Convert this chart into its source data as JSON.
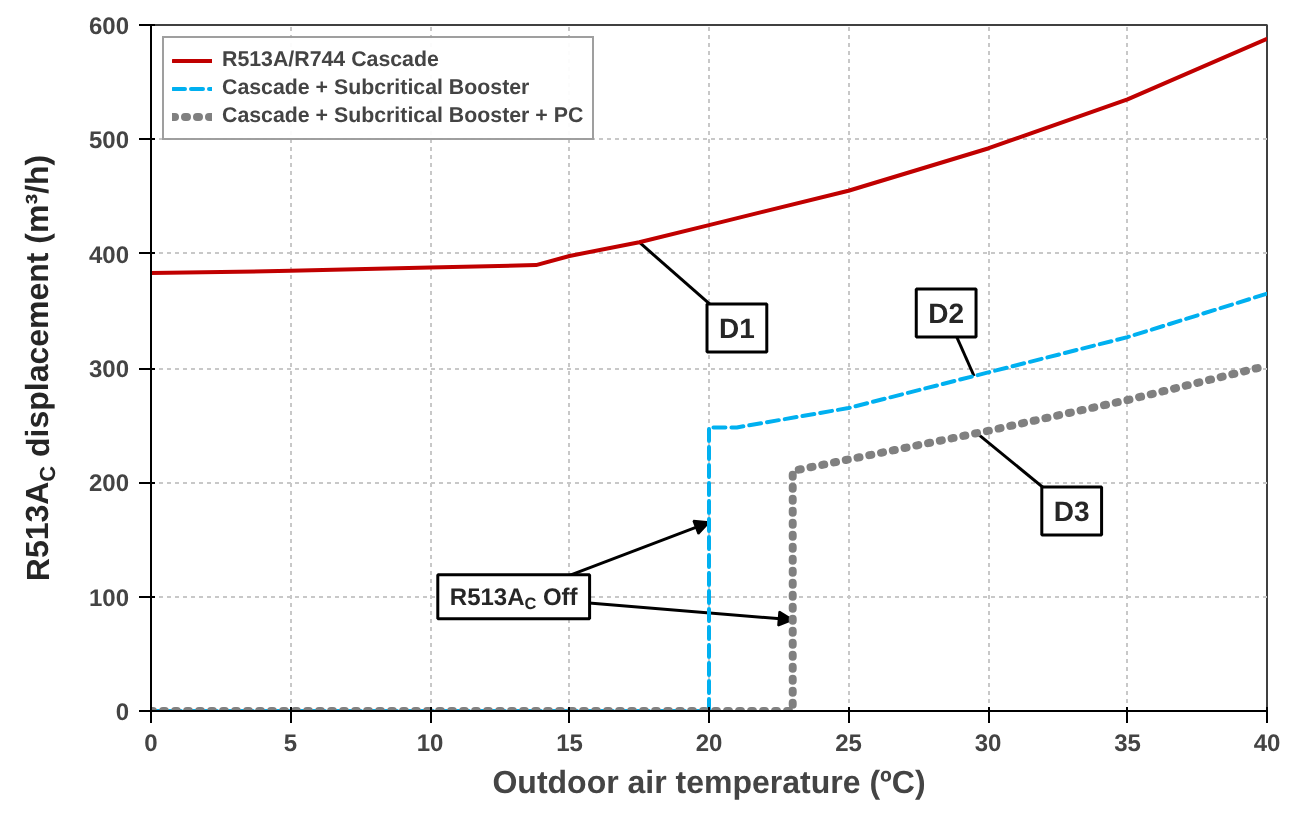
{
  "chart_data": {
    "type": "line",
    "xlabel": "Outdoor air temperature (ºC)",
    "ylabel": "R513A$_{C}$ displacement (m³/h)",
    "xlim": [
      0,
      40
    ],
    "xticks": [
      0,
      5,
      10,
      15,
      20,
      25,
      30,
      35,
      40
    ],
    "ylim": [
      0,
      600
    ],
    "yticks": [
      0,
      100,
      200,
      300,
      400,
      500,
      600
    ],
    "grid": true,
    "legend": "top left",
    "series": [
      {
        "name": "R513A/R744 Cascade",
        "color": "#c00000",
        "line_style": "solid",
        "x": [
          0,
          5,
          10,
          13.8,
          15,
          17.5,
          20,
          25,
          30,
          35,
          40
        ],
        "values": [
          383,
          385,
          388,
          390,
          398,
          410,
          425,
          455,
          492,
          535,
          588
        ]
      },
      {
        "name": "Cascade + Subcritical Booster",
        "color": "#00b0f0",
        "line_style": "dashed",
        "x": [
          0,
          20,
          20,
          21,
          25,
          29.5,
          35,
          40
        ],
        "values": [
          0,
          0,
          248,
          248,
          265,
          293,
          327,
          365
        ]
      },
      {
        "name": "Cascade + Subcritical Booster + PC",
        "color": "#808080",
        "line_style": "dotted",
        "x": [
          0,
          23,
          23,
          24,
          25,
          30,
          35,
          40
        ],
        "values": [
          0,
          0,
          210,
          215,
          220,
          245,
          272,
          302
        ]
      }
    ],
    "annotations": [
      {
        "text": "D1",
        "x": 17.5,
        "y": 410
      },
      {
        "text": "D2",
        "x": 29.5,
        "y": 293
      },
      {
        "text": "D3",
        "x": 29.5,
        "y": 245
      },
      {
        "text": "R513A$_{C}$ Off",
        "x": 20,
        "y": 165
      }
    ]
  }
}
